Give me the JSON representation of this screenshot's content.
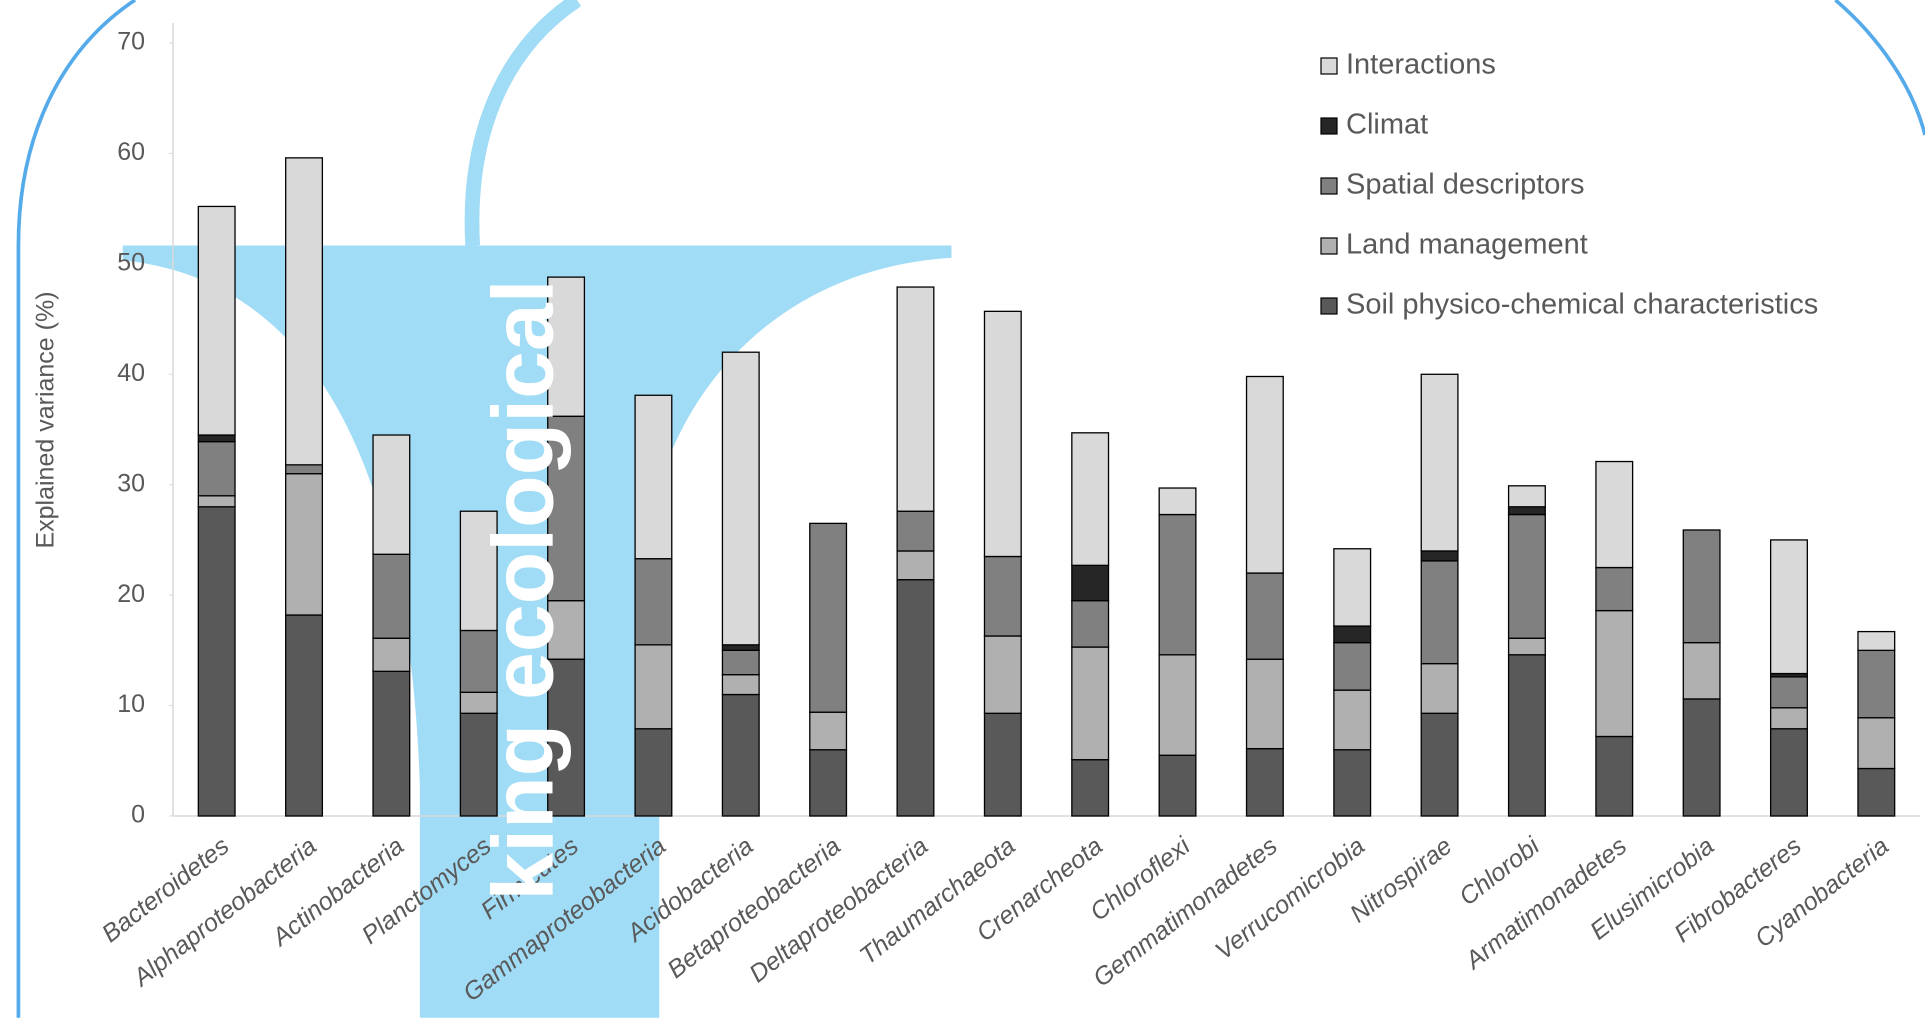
{
  "chart_data": {
    "type": "stacked-bar",
    "y_label": "Explained variance (%)",
    "annotation": "king ecological",
    "categories": [
      "Bacteroidetes",
      "Alphaproteobacteria",
      "Actinobacteria",
      "Planctomyces",
      "Firmicutes",
      "Gammaproteobacteria",
      "Acidobacteria",
      "Betaproteobacteria",
      "Deltaproteobacteria",
      "Thaumarchaeota",
      "Crenarcheota",
      "Chloroflexi",
      "Gemmatimonadetes",
      "Verrucomicrobia",
      "Nitrospirae",
      "Chlorobi",
      "Armatimonadetes",
      "Elusimicrobia",
      "Fibrobacteres",
      "Cyanobacteria"
    ],
    "series": [
      {
        "name": "Soil physico-chemical characteristics",
        "color": "#595959",
        "values": [
          28,
          18.2,
          13.1,
          9.3,
          14.2,
          7.9,
          11,
          6,
          21.4,
          9.3,
          5.1,
          5.5,
          6.1,
          6,
          9.3,
          14.6,
          7.2,
          10.6,
          7.9,
          4.3
        ]
      },
      {
        "name": "Land management",
        "color": "#b0b0b0",
        "values": [
          1,
          12.8,
          3,
          1.9,
          5.3,
          7.6,
          1.8,
          3.4,
          2.6,
          7,
          10.2,
          9.1,
          8.1,
          5.4,
          4.5,
          1.5,
          11.4,
          5.1,
          1.9,
          4.6
        ]
      },
      {
        "name": "Spatial descriptors",
        "color": "#808080",
        "values": [
          4.9,
          0.8,
          7.6,
          5.6,
          16.7,
          7.8,
          2.2,
          17.1,
          3.6,
          7.2,
          4.2,
          12.7,
          7.8,
          4.3,
          9.3,
          11.2,
          3.9,
          10.2,
          2.8,
          6.1
        ]
      },
      {
        "name": "Climat",
        "color": "#262626",
        "values": [
          0.6,
          0,
          0,
          0,
          0,
          0,
          0.5,
          0,
          0,
          0,
          3.2,
          0,
          0,
          1.5,
          0.9,
          0.7,
          0,
          0,
          0.3,
          0
        ]
      },
      {
        "name": "Interactions",
        "color": "#d9d9d9",
        "values": [
          20.7,
          27.8,
          10.8,
          10.8,
          12.6,
          14.8,
          26.5,
          0,
          20.3,
          22.2,
          12,
          2.4,
          17.8,
          7,
          16,
          1.9,
          9.6,
          0,
          12.1,
          1.7
        ]
      }
    ],
    "ylim": [
      0,
      70
    ],
    "yticks": [
      0,
      10,
      20,
      30,
      40,
      50,
      60,
      70
    ],
    "legend": "top-right"
  }
}
